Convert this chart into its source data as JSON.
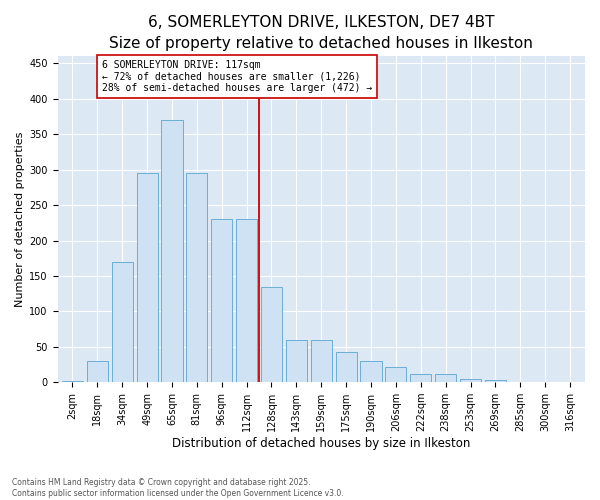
{
  "title": "6, SOMERLEYTON DRIVE, ILKESTON, DE7 4BT",
  "subtitle": "Size of property relative to detached houses in Ilkeston",
  "xlabel": "Distribution of detached houses by size in Ilkeston",
  "ylabel": "Number of detached properties",
  "bar_labels": [
    "2sqm",
    "18sqm",
    "34sqm",
    "49sqm",
    "65sqm",
    "81sqm",
    "96sqm",
    "112sqm",
    "128sqm",
    "143sqm",
    "159sqm",
    "175sqm",
    "190sqm",
    "206sqm",
    "222sqm",
    "238sqm",
    "253sqm",
    "269sqm",
    "285sqm",
    "300sqm",
    "316sqm"
  ],
  "bar_values": [
    2,
    30,
    170,
    295,
    370,
    295,
    230,
    230,
    135,
    60,
    60,
    43,
    30,
    22,
    12,
    12,
    5,
    3,
    1,
    0,
    0
  ],
  "bar_color": "#cfe2f3",
  "bar_edge_color": "#6aaed6",
  "vline_color": "#cc0000",
  "annotation_text": "6 SOMERLEYTON DRIVE: 117sqm\n← 72% of detached houses are smaller (1,226)\n28% of semi-detached houses are larger (472) →",
  "annotation_box_color": "#cc0000",
  "ylim": [
    0,
    460
  ],
  "yticks": [
    0,
    50,
    100,
    150,
    200,
    250,
    300,
    350,
    400,
    450
  ],
  "background_color": "#dce9f5",
  "footer_text": "Contains HM Land Registry data © Crown copyright and database right 2025.\nContains public sector information licensed under the Open Government Licence v3.0.",
  "title_fontsize": 11,
  "xlabel_fontsize": 8.5,
  "ylabel_fontsize": 8,
  "tick_fontsize": 7,
  "annotation_fontsize": 7,
  "footer_fontsize": 5.5,
  "vline_bar_index": 7
}
